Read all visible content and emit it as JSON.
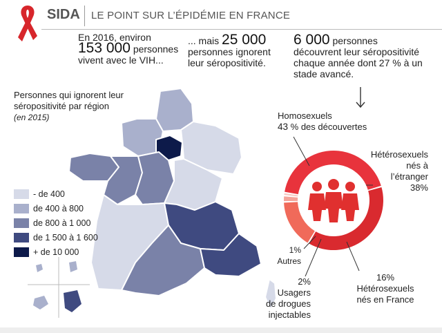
{
  "header": {
    "tag": "SIDA",
    "title": "LE POINT SUR L’ÉPIDÉMIE EN FRANCE"
  },
  "stats": {
    "s1": {
      "pre": "En 2016, environ",
      "number": "153 000",
      "post": "personnes vivent avec le VIH..."
    },
    "s2": {
      "pre": "... mais",
      "number": "25 000",
      "post": "personnes ignorent leur séropositivité."
    },
    "s3": {
      "number": "6 000",
      "post1": "personnes",
      "post2": "découvrent leur séropositivité chaque année dont 27 % à un stade avancé."
    }
  },
  "map": {
    "title": "Personnes qui ignorent leur séropositivité par région",
    "year": "(en 2015)",
    "legend": [
      {
        "label": "- de 400",
        "color": "#d6dae8"
      },
      {
        "label": "de 400 à 800",
        "color": "#a9b0cc"
      },
      {
        "label": "de 800 à 1 000",
        "color": "#7a82a8"
      },
      {
        "label": "de 1 500 à 1 600",
        "color": "#3f4a80"
      },
      {
        "label": "+ de 10 000",
        "color": "#0d1a4a"
      }
    ]
  },
  "discoveries": {
    "segments": [
      {
        "name": "Homosexuels",
        "pct": 43,
        "pct_label": "43 % des découvertes",
        "color": "#e8333c"
      },
      {
        "name": "Hétérosexuels nés à l’étranger",
        "pct": 38,
        "pct_label": "38%",
        "color": "#d92a2f"
      },
      {
        "name": "Hétérosexuels nés en France",
        "pct": 16,
        "pct_label": "16%",
        "color": "#f06a5a"
      },
      {
        "name": "Usagers de drogues injectables",
        "pct": 2,
        "pct_label": "2%",
        "color": "#f4a49a"
      },
      {
        "name": "Autres",
        "pct": 1,
        "pct_label": "1%",
        "color": "#f8c7c0"
      }
    ],
    "labels": {
      "homo_name": "Homosexuels",
      "homo_pct": "43",
      "homo_rest": "% des découvertes",
      "hetero_etr_l1": "Hétérosexuels",
      "hetero_etr_l2": "nés à",
      "hetero_etr_l3": "l’étranger",
      "hetero_etr_pct": "38%",
      "hetero_fr_pct": "16%",
      "hetero_fr_l1": "Hétérosexuels",
      "hetero_fr_l2": "nés en France",
      "udi_pct": "2%",
      "udi_l1": "Usagers",
      "udi_l2": "de drogues",
      "udi_l3": "injectables",
      "autres_pct": "1%",
      "autres_name": "Autres"
    }
  }
}
